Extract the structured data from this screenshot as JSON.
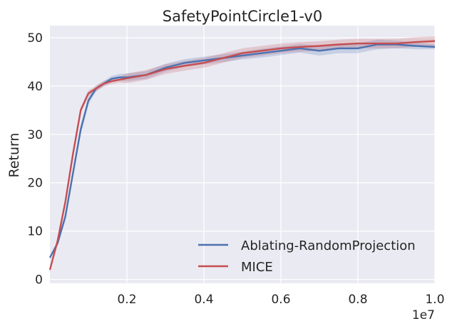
{
  "chart_data": {
    "type": "line",
    "title": "SafetyPointCircle1-v0",
    "xlabel": "",
    "ylabel": "Return",
    "x_offset_label": "1e7",
    "xlim": [
      0.0,
      1.0
    ],
    "ylim": [
      -0.8,
      52.5
    ],
    "x_ticks": [
      0.2,
      0.4,
      0.6,
      0.8,
      1.0
    ],
    "x_tick_labels": [
      "0.2",
      "0.4",
      "0.6",
      "0.8",
      "1.0"
    ],
    "y_ticks": [
      0,
      10,
      20,
      30,
      40,
      50
    ],
    "y_tick_labels": [
      "0",
      "10",
      "20",
      "30",
      "40",
      "50"
    ],
    "grid": true,
    "legend_position": "lower-right",
    "series": [
      {
        "name": "Ablating-RandomProjection",
        "color": "#4c72b0",
        "x": [
          0.0,
          0.02,
          0.04,
          0.06,
          0.08,
          0.1,
          0.12,
          0.14,
          0.16,
          0.18,
          0.2,
          0.25,
          0.3,
          0.35,
          0.4,
          0.45,
          0.5,
          0.55,
          0.6,
          0.65,
          0.7,
          0.75,
          0.8,
          0.85,
          0.9,
          0.95,
          1.0
        ],
        "y": [
          4.5,
          7.5,
          13,
          22,
          31,
          37,
          39.5,
          40.5,
          41.5,
          41.8,
          41.8,
          42.3,
          43.8,
          44.8,
          45.3,
          45.8,
          46.3,
          46.8,
          47.3,
          47.8,
          47.3,
          47.8,
          47.8,
          48.6,
          48.6,
          48.3,
          48.1
        ],
        "band": [
          0.3,
          0.6,
          0.8,
          1.0,
          1.0,
          0.8,
          0.6,
          0.5,
          0.6,
          0.7,
          0.8,
          0.8,
          0.8,
          0.8,
          0.8,
          0.8,
          0.8,
          0.9,
          0.9,
          0.9,
          1.0,
          1.0,
          1.0,
          1.0,
          0.8,
          0.7,
          0.5
        ]
      },
      {
        "name": "MICE",
        "color": "#c44e52",
        "x": [
          0.0,
          0.02,
          0.04,
          0.06,
          0.08,
          0.1,
          0.12,
          0.14,
          0.16,
          0.18,
          0.2,
          0.25,
          0.3,
          0.35,
          0.4,
          0.45,
          0.5,
          0.55,
          0.6,
          0.65,
          0.7,
          0.75,
          0.8,
          0.85,
          0.9,
          0.95,
          1.0
        ],
        "y": [
          2.0,
          8.0,
          16,
          26,
          35,
          38.5,
          39.5,
          40.5,
          41.0,
          41.3,
          41.6,
          42.3,
          43.5,
          44.2,
          44.8,
          45.8,
          46.8,
          47.3,
          47.8,
          48.1,
          48.3,
          48.6,
          48.8,
          48.8,
          48.8,
          49.1,
          49.3
        ]
      }
    ]
  }
}
